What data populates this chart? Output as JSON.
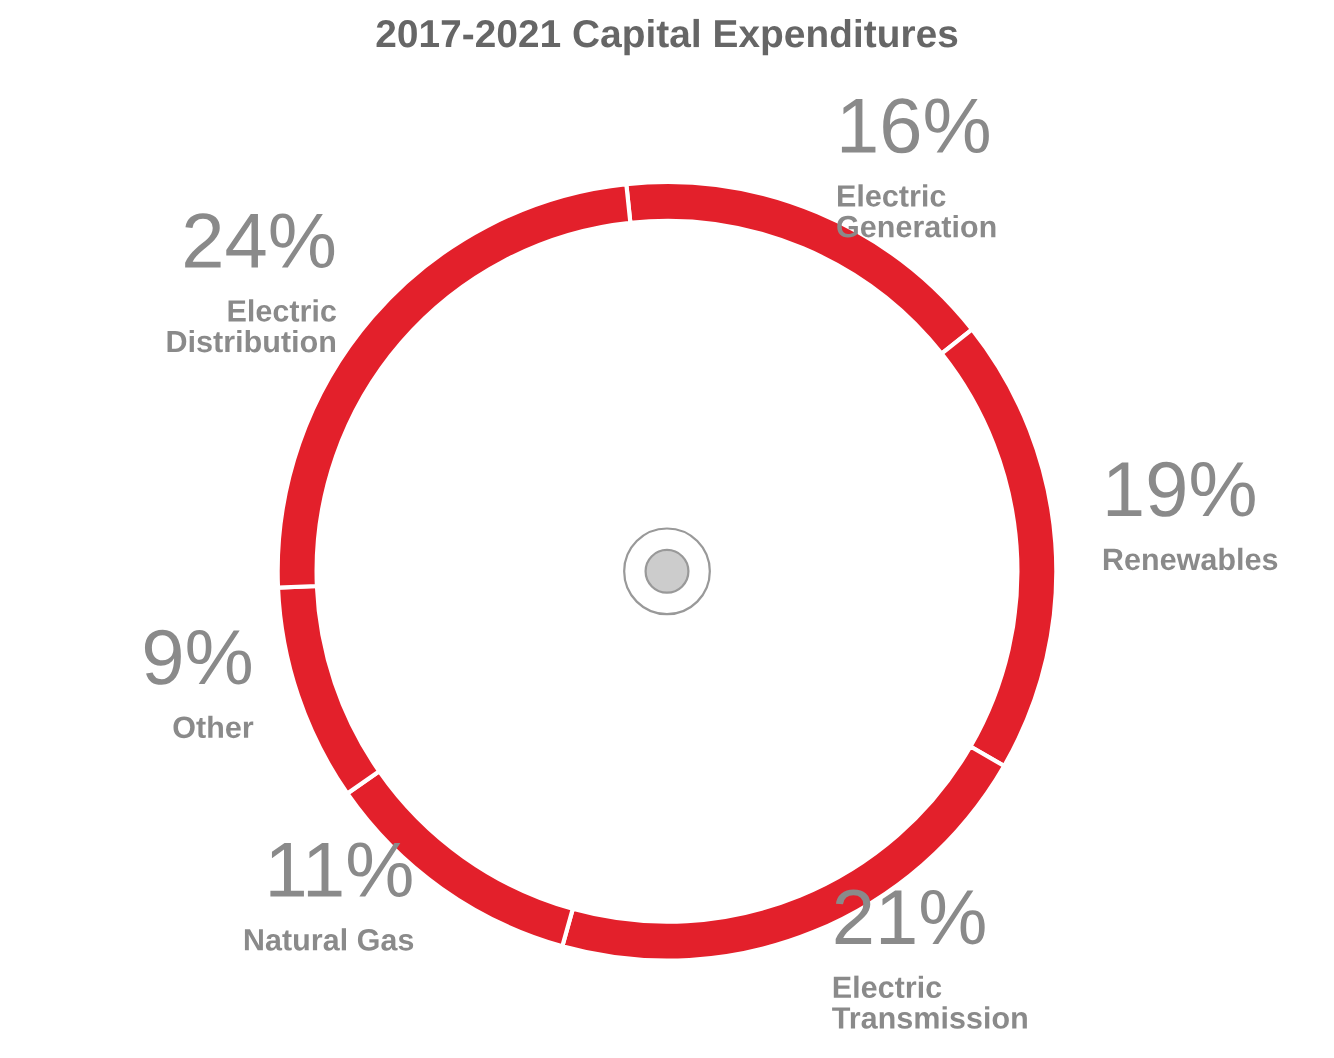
{
  "chart_data": {
    "type": "donut",
    "title": "2017-2021 Capital Expenditures",
    "categories": [
      "Electric\nGeneration",
      "Renewables",
      "Electric\nTransmission",
      "Natural Gas",
      "Other",
      "Electric\nDistribution"
    ],
    "values": [
      16,
      19,
      21,
      11,
      9,
      24
    ],
    "value_labels": [
      "16%",
      "19%",
      "21%",
      "11%",
      "9%",
      "24%"
    ],
    "colors": [
      "#e3202b",
      "#e3202b",
      "#e3202b",
      "#e3202b",
      "#e3202b",
      "#e3202b"
    ]
  }
}
